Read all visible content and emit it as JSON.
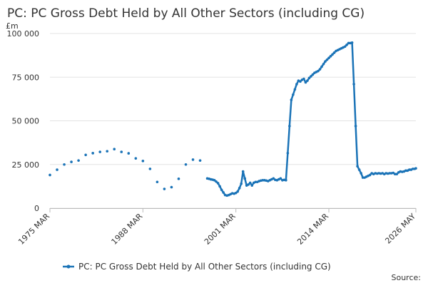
{
  "chart_data": {
    "type": "line",
    "title": "PC: PC Gross Debt Held by All Other Sectors (including CG)",
    "y_unit": "£m",
    "source_label": "Source:",
    "grid": true,
    "legend_position": "bottom",
    "xlim": [
      "1975 MAR",
      "2026 MAY"
    ],
    "xticks": [
      "1975 MAR",
      "1988 MAR",
      "2001 MAR",
      "2014 MAR",
      "2026 MAY"
    ],
    "ylim": [
      0,
      100000
    ],
    "yticks": [
      {
        "value": 0,
        "label": "0"
      },
      {
        "value": 25000,
        "label": "25 000"
      },
      {
        "value": 50000,
        "label": "50 000"
      },
      {
        "value": 75000,
        "label": "75 000"
      },
      {
        "value": 100000,
        "label": "100 000"
      }
    ],
    "x": [
      "1975 MAR",
      "1975 JUN",
      "1976 MAR",
      "1976 JUN",
      "1977 MAR",
      "1977 JUN",
      "1978 MAR",
      "1978 JUN",
      "1979 MAR",
      "1979 JUN",
      "1980 MAR",
      "1980 JUN",
      "1981 MAR",
      "1981 JUN",
      "1982 MAR",
      "1982 JUN",
      "1983 MAR",
      "1983 JUN",
      "1984 MAR",
      "1984 JUN",
      "1985 MAR",
      "1985 JUN",
      "1986 MAR",
      "1986 JUN",
      "1987 MAR",
      "1987 JUN",
      "1988 MAR",
      "1988 JUN",
      "1989 MAR",
      "1989 JUN",
      "1990 MAR",
      "1990 JUN",
      "1991 MAR",
      "1991 JUN",
      "1992 MAR",
      "1992 JUN",
      "1993 MAR",
      "1993 JUN",
      "1994 MAR",
      "1994 JUN",
      "1995 MAR",
      "1995 JUN",
      "1996 MAR",
      "1996 JUN",
      "1997 MAR",
      "1997 JUN",
      "1997 SEP",
      "1997 DEC",
      "1998 MAR",
      "1998 JUN",
      "1998 SEP",
      "1998 DEC",
      "1999 MAR",
      "1999 JUN",
      "1999 SEP",
      "1999 DEC",
      "2000 MAR",
      "2000 JUN",
      "2000 SEP",
      "2000 DEC",
      "2001 MAR",
      "2001 JUN",
      "2001 SEP",
      "2001 DEC",
      "2002 MAR",
      "2002 JUN",
      "2002 SEP",
      "2002 DEC",
      "2003 MAR",
      "2003 JUN",
      "2003 SEP",
      "2003 DEC",
      "2004 MAR",
      "2004 JUN",
      "2004 SEP",
      "2004 DEC",
      "2005 MAR",
      "2005 JUN",
      "2005 SEP",
      "2005 DEC",
      "2006 MAR",
      "2006 JUN",
      "2006 SEP",
      "2006 DEC",
      "2007 MAR",
      "2007 JUN",
      "2007 SEP",
      "2007 DEC",
      "2008 MAR",
      "2008 JUN",
      "2008 SEP",
      "2008 DEC",
      "2009 MAR",
      "2009 JUN",
      "2009 SEP",
      "2009 DEC",
      "2010 MAR",
      "2010 JUN",
      "2010 SEP",
      "2010 DEC",
      "2011 MAR",
      "2011 JUN",
      "2011 SEP",
      "2011 DEC",
      "2012 MAR",
      "2012 JUN",
      "2012 SEP",
      "2012 DEC",
      "2013 MAR",
      "2013 JUN",
      "2013 SEP",
      "2013 DEC",
      "2014 MAR",
      "2014 JUN",
      "2014 SEP",
      "2014 DEC",
      "2015 MAR",
      "2015 JUN",
      "2015 SEP",
      "2015 DEC",
      "2016 MAR",
      "2016 JUN",
      "2016 SEP",
      "2016 DEC",
      "2017 MAR",
      "2017 JUN",
      "2017 SEP",
      "2017 DEC",
      "2018 MAR",
      "2018 JUN",
      "2018 SEP",
      "2018 DEC",
      "2019 MAR",
      "2019 JUN",
      "2019 SEP",
      "2019 DEC",
      "2020 MAR",
      "2020 JUN",
      "2020 SEP",
      "2020 DEC",
      "2021 MAR",
      "2021 JUN",
      "2021 SEP",
      "2021 DEC",
      "2022 MAR",
      "2022 JUN",
      "2022 SEP",
      "2022 DEC",
      "2023 MAR",
      "2023 JUN",
      "2023 SEP",
      "2023 DEC",
      "2024 MAR",
      "2024 JUN",
      "2024 SEP",
      "2024 DEC",
      "2025 MAR",
      "2025 JUN",
      "2025 SEP",
      "2025 DEC",
      "2026 MAR",
      "2026 MAY"
    ],
    "series": [
      {
        "name": "PC: PC Gross Debt Held by All Other Sectors (including CG)",
        "color": "#1a73b7",
        "values": [
          19000,
          null,
          22000,
          null,
          25000,
          null,
          26500,
          null,
          27300,
          null,
          30500,
          null,
          31500,
          null,
          32200,
          null,
          32600,
          null,
          33800,
          null,
          32200,
          null,
          31400,
          null,
          28500,
          null,
          27000,
          null,
          22500,
          null,
          15000,
          null,
          11000,
          null,
          12000,
          null,
          16800,
          null,
          25000,
          null,
          27800,
          null,
          27300,
          null,
          17000,
          16800,
          16500,
          16300,
          16000,
          15200,
          14300,
          12500,
          10500,
          9000,
          7500,
          7200,
          7500,
          8000,
          8500,
          8300,
          8700,
          9500,
          11500,
          14000,
          21000,
          17000,
          13000,
          13500,
          14500,
          13000,
          14500,
          15000,
          15000,
          15500,
          15800,
          16000,
          16000,
          15800,
          15500,
          16000,
          16500,
          17000,
          16200,
          16000,
          16500,
          17000,
          16000,
          16200,
          16000,
          31500,
          47000,
          62000,
          65000,
          68000,
          71000,
          73000,
          72500,
          73500,
          74000,
          72000,
          73000,
          74500,
          75500,
          76500,
          77500,
          78000,
          78500,
          79500,
          81000,
          82500,
          84000,
          85000,
          86000,
          87000,
          88000,
          89000,
          90000,
          90500,
          91000,
          91500,
          92000,
          92500,
          93500,
          94500,
          94500,
          94800,
          71000,
          47000,
          24000,
          22000,
          20000,
          17500,
          17500,
          18000,
          18500,
          19000,
          20000,
          19500,
          20000,
          19800,
          20000,
          19800,
          20000,
          19500,
          20000,
          19800,
          20000,
          20000,
          20200,
          19500,
          19500,
          20500,
          21000,
          20800,
          21000,
          21500,
          21500,
          22000,
          22000,
          22500,
          22500,
          22800
        ]
      }
    ]
  }
}
